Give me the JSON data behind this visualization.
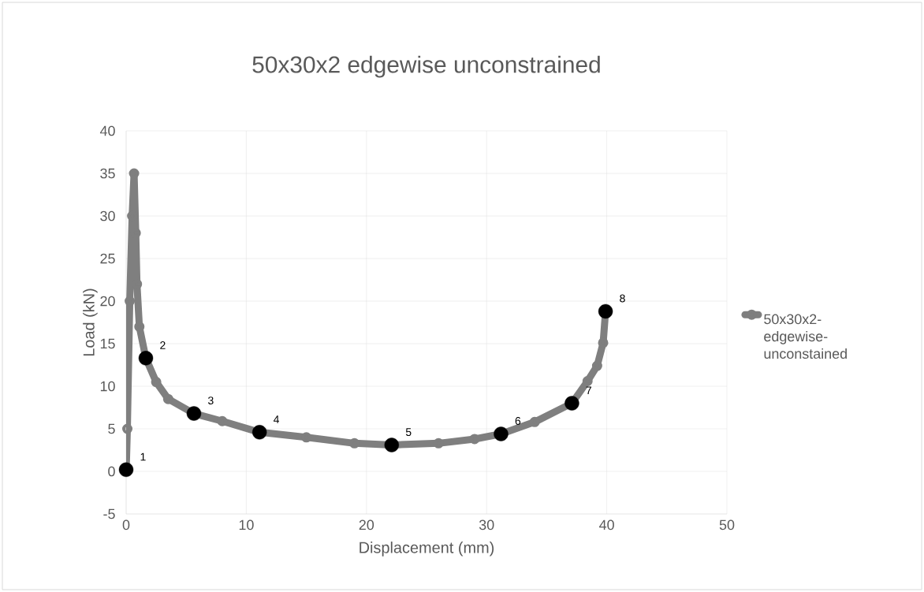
{
  "chart_data": {
    "type": "line",
    "title": "50x30x2 edgewise unconstrained",
    "xlabel": "Displacement (mm)",
    "ylabel": "Load (kN)",
    "xlim": [
      0,
      50
    ],
    "xticks": [
      0,
      10,
      20,
      30,
      40,
      50
    ],
    "ylim": [
      -5,
      40
    ],
    "yticks": [
      -5,
      0,
      5,
      10,
      15,
      20,
      25,
      30,
      35,
      40
    ],
    "grid": true,
    "legend": "right",
    "series": [
      {
        "name": "50x30x2-edgewise-unconstained",
        "color": "#7f7f7f",
        "marker": "circle",
        "x": [
          0,
          0.1,
          0.3,
          0.5,
          0.66,
          0.8,
          0.9,
          1.1,
          1.64,
          2.5,
          3.5,
          5.64,
          8,
          11.1,
          15,
          19,
          22.1,
          26,
          29,
          31.2,
          34,
          37.1,
          38.4,
          39.2,
          39.7,
          39.9
        ],
        "values": [
          0,
          5,
          20,
          30,
          35,
          28,
          22,
          17,
          13.3,
          10.5,
          8.5,
          6.8,
          5.9,
          4.6,
          4,
          3.3,
          3.1,
          3.3,
          3.8,
          4.4,
          5.8,
          8,
          10.6,
          12.4,
          15.1,
          18.8
        ]
      },
      {
        "type": "scatter",
        "color": "#000000",
        "marker": "circle",
        "x": [
          0,
          1.64,
          5.64,
          11.1,
          22.1,
          31.2,
          37.1,
          39.9
        ],
        "values": [
          0.2,
          13.3,
          6.8,
          4.6,
          3.1,
          4.4,
          8,
          18.8
        ]
      }
    ],
    "annotations": [
      {
        "text": "1",
        "x": 0,
        "y": 0.2
      },
      {
        "text": "2",
        "x": 1.64,
        "y": 13.3
      },
      {
        "text": "3",
        "x": 5.64,
        "y": 6.8
      },
      {
        "text": "4",
        "x": 11.1,
        "y": 4.6
      },
      {
        "text": "5",
        "x": 22.1,
        "y": 3.1
      },
      {
        "text": "6",
        "x": 31.2,
        "y": 4.4
      },
      {
        "text": "7",
        "x": 37.1,
        "y": 8
      },
      {
        "text": "8",
        "x": 39.9,
        "y": 18.8
      }
    ]
  }
}
